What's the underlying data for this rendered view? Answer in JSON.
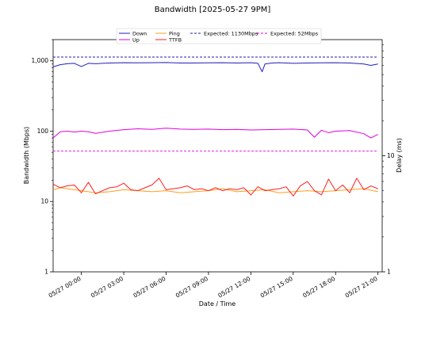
{
  "chart_data": {
    "type": "line",
    "title": "Bandwidth [2025-05-27 9PM]",
    "xlabel": "Date / Time",
    "ylabel_left": "Bandwidth (Mbps)",
    "ylabel_right": "Delay (ms)",
    "y_left_scale": "log",
    "y_left_lim": [
      1,
      2000
    ],
    "y_left_ticks": [
      {
        "value": 1,
        "label": "1"
      },
      {
        "value": 10,
        "label": "10"
      },
      {
        "value": 100,
        "label": "100"
      },
      {
        "value": 1000,
        "label": "1,000"
      }
    ],
    "y_right_scale": "log",
    "y_right_lim": [
      1,
      100
    ],
    "y_right_ticks": [
      {
        "value": 1,
        "label": "1"
      },
      {
        "value": 10,
        "label": "10"
      }
    ],
    "x_unit": "hours",
    "x_range": [
      -2.0,
      21.3
    ],
    "x_ticks": [
      {
        "value": 0,
        "label": "05/27 00:00"
      },
      {
        "value": 3,
        "label": "05/27 03:00"
      },
      {
        "value": 6,
        "label": "05/27 06:00"
      },
      {
        "value": 9,
        "label": "05/27 09:00"
      },
      {
        "value": 12,
        "label": "05/27 12:00"
      },
      {
        "value": 15,
        "label": "05/27 15:00"
      },
      {
        "value": 18,
        "label": "05/27 18:00"
      },
      {
        "value": 21,
        "label": "05/27 21:00"
      }
    ],
    "legend_position": "top-center",
    "series": [
      {
        "name": "Down",
        "axis": "left",
        "color": "#1f1fbf",
        "dash": false,
        "x": [
          -2.0,
          -1.5,
          -1.0,
          -0.5,
          0.0,
          0.5,
          1.0,
          1.5,
          2.0,
          3.0,
          4.0,
          5.0,
          6.0,
          7.0,
          8.0,
          9.0,
          10.0,
          11.0,
          12.0,
          12.5,
          12.8,
          13.0,
          13.5,
          14.0,
          15.0,
          16.0,
          17.0,
          18.0,
          19.0,
          20.0,
          20.5,
          21.0
        ],
        "y": [
          820,
          880,
          910,
          920,
          830,
          920,
          910,
          920,
          930,
          940,
          935,
          940,
          945,
          930,
          930,
          935,
          940,
          930,
          940,
          920,
          700,
          900,
          930,
          940,
          920,
          930,
          935,
          940,
          930,
          900,
          860,
          900
        ]
      },
      {
        "name": "Up",
        "axis": "left",
        "color": "#e000e0",
        "dash": false,
        "x": [
          -2.0,
          -1.5,
          -1.0,
          -0.5,
          0.0,
          0.5,
          1.0,
          2.0,
          3.0,
          4.0,
          5.0,
          6.0,
          7.0,
          8.0,
          9.0,
          10.0,
          11.0,
          12.0,
          13.0,
          14.0,
          15.0,
          16.0,
          16.5,
          17.0,
          17.5,
          18.0,
          19.0,
          20.0,
          20.5,
          21.0
        ],
        "y": [
          80,
          98,
          100,
          97,
          100,
          98,
          93,
          100,
          105,
          108,
          106,
          110,
          107,
          106,
          107,
          105,
          106,
          104,
          105,
          106,
          107,
          104,
          82,
          103,
          95,
          100,
          102,
          92,
          80,
          90
        ]
      },
      {
        "name": "Ping",
        "axis": "right",
        "color": "#ff9f1c",
        "dash": false,
        "x": [
          -2.0,
          -1.5,
          -1.0,
          0.0,
          1.0,
          2.0,
          3.0,
          4.0,
          5.0,
          6.0,
          7.0,
          8.0,
          9.0,
          10.0,
          11.0,
          12.0,
          13.0,
          14.0,
          15.0,
          16.0,
          17.0,
          18.0,
          19.0,
          20.0,
          21.0
        ],
        "y": [
          5.1,
          5.3,
          5.2,
          5.0,
          4.8,
          4.9,
          5.1,
          5.0,
          4.9,
          5.0,
          4.8,
          4.9,
          5.0,
          5.2,
          4.9,
          5.0,
          5.1,
          4.8,
          4.9,
          5.0,
          4.9,
          5.0,
          5.1,
          5.2,
          4.9
        ]
      },
      {
        "name": "TTFB",
        "axis": "right",
        "color": "#ff1f1f",
        "dash": false,
        "x": [
          -2.0,
          -1.5,
          -1.0,
          -0.5,
          0.0,
          0.5,
          1.0,
          1.5,
          2.0,
          2.5,
          3.0,
          3.5,
          4.0,
          4.5,
          5.0,
          5.5,
          6.0,
          6.5,
          7.0,
          7.5,
          8.0,
          8.5,
          9.0,
          9.5,
          10.0,
          10.5,
          11.0,
          11.5,
          12.0,
          12.5,
          13.0,
          13.5,
          14.0,
          14.5,
          15.0,
          15.5,
          16.0,
          16.5,
          17.0,
          17.5,
          18.0,
          18.5,
          19.0,
          19.5,
          20.0,
          20.5,
          21.0
        ],
        "y": [
          5.7,
          5.3,
          5.5,
          5.6,
          4.8,
          5.9,
          4.7,
          5.0,
          5.3,
          5.4,
          5.8,
          5.1,
          5.0,
          5.3,
          5.6,
          6.4,
          5.1,
          5.2,
          5.3,
          5.5,
          5.1,
          5.2,
          5.0,
          5.3,
          5.0,
          5.2,
          5.1,
          5.3,
          4.6,
          5.4,
          5.0,
          5.1,
          5.2,
          5.4,
          4.5,
          5.5,
          6.0,
          5.0,
          4.6,
          6.3,
          5.0,
          5.6,
          4.8,
          6.4,
          5.1,
          5.5,
          5.2
        ]
      },
      {
        "name": "Expected: 1130Mbps",
        "axis": "left",
        "color": "#1f1fbf",
        "dash": true,
        "x": [
          -2.0,
          21.0
        ],
        "y": [
          1130,
          1130
        ]
      },
      {
        "name": "Expected: 52Mbps",
        "axis": "left",
        "color": "#e000e0",
        "dash": true,
        "x": [
          -2.0,
          21.0
        ],
        "y": [
          52,
          52
        ]
      }
    ]
  }
}
